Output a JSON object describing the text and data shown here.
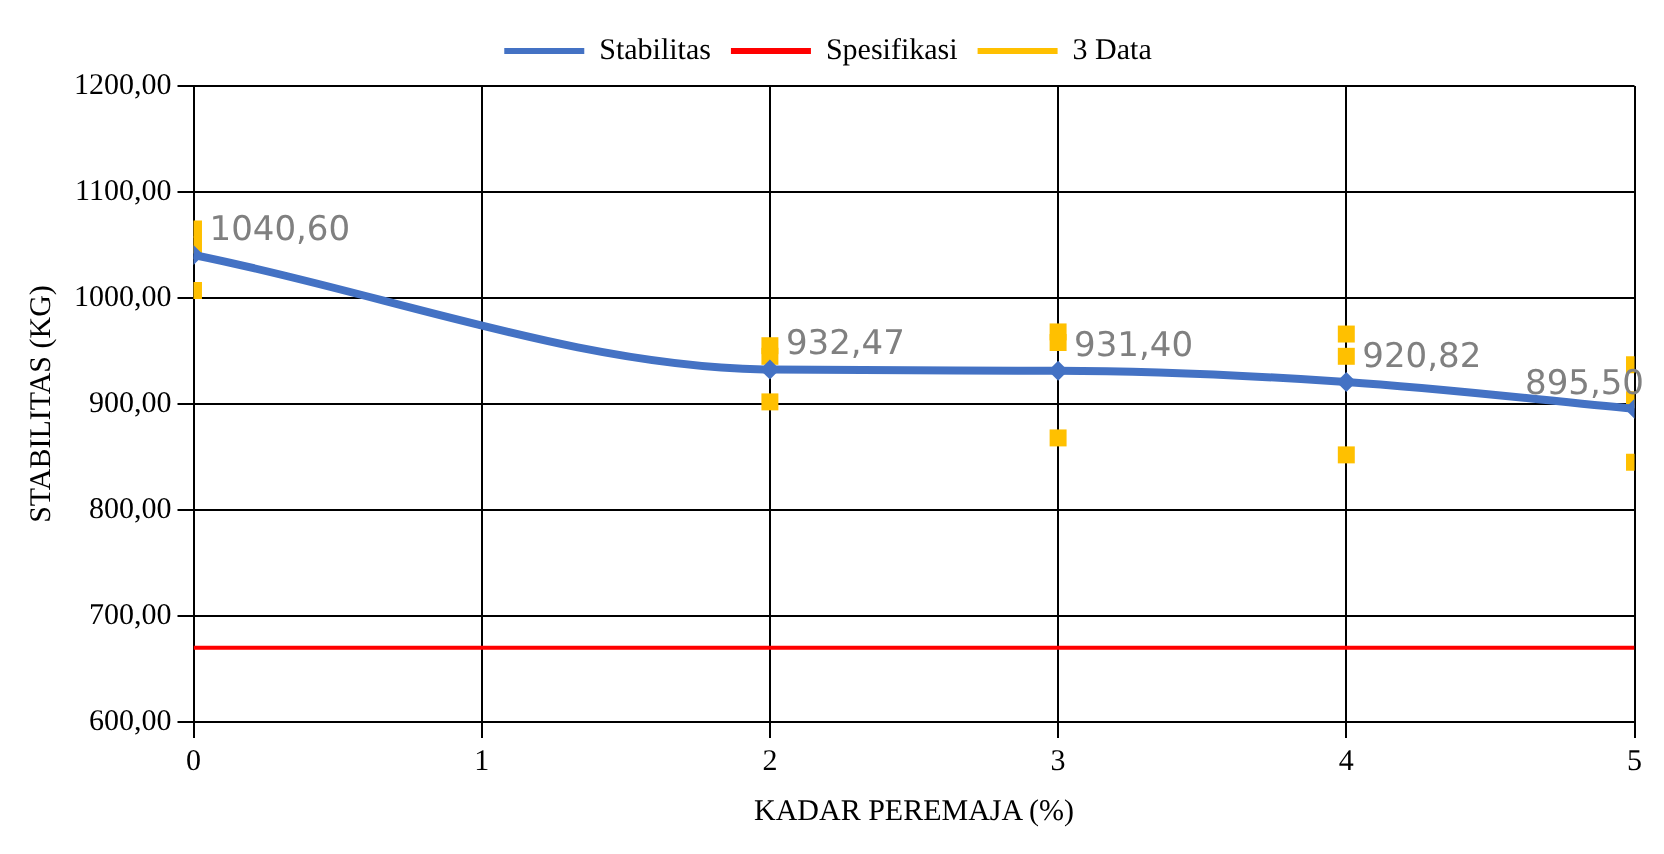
{
  "chart_data": {
    "type": "line",
    "xlabel": "KADAR PEREMAJA (%)",
    "ylabel": "STABILITAS (KG)",
    "xlim": [
      0,
      5
    ],
    "xticks": [
      0,
      1,
      2,
      3,
      4,
      5
    ],
    "ylim": [
      600,
      1200
    ],
    "yticks": [
      {
        "value": 600,
        "label": "600,00"
      },
      {
        "value": 700,
        "label": "700,00"
      },
      {
        "value": 800,
        "label": "800,00"
      },
      {
        "value": 900,
        "label": "900,00"
      },
      {
        "value": 1000,
        "label": "1000,00"
      },
      {
        "value": 1100,
        "label": "1100,00"
      },
      {
        "value": 1200,
        "label": "1200,00"
      }
    ],
    "grid": true,
    "legend": "top",
    "series": [
      {
        "name": "Stabilitas",
        "type": "line",
        "color": "#4472c4",
        "marker": "diamond",
        "x": [
          0,
          2,
          3,
          4,
          5
        ],
        "values": [
          1040.6,
          932.47,
          931.4,
          920.82,
          895.5
        ],
        "value_labels": [
          "1040,60",
          "932,47",
          "931,40",
          "920,82",
          "895,50"
        ]
      },
      {
        "name": "Spesifikasi",
        "type": "line",
        "color": "#ff0000",
        "marker": "none",
        "x": [
          0,
          5
        ],
        "values": [
          670,
          670
        ]
      },
      {
        "name": "3 Data",
        "type": "scatter",
        "color": "#ffc000",
        "marker": "square",
        "x": [
          0,
          0,
          0,
          2,
          2,
          2,
          3,
          3,
          3,
          4,
          4,
          4,
          5,
          5,
          5
        ],
        "values": [
          1065,
          1050,
          1007,
          955,
          945,
          902,
          968,
          958,
          868,
          966,
          945,
          852,
          937,
          904,
          845
        ]
      }
    ]
  }
}
